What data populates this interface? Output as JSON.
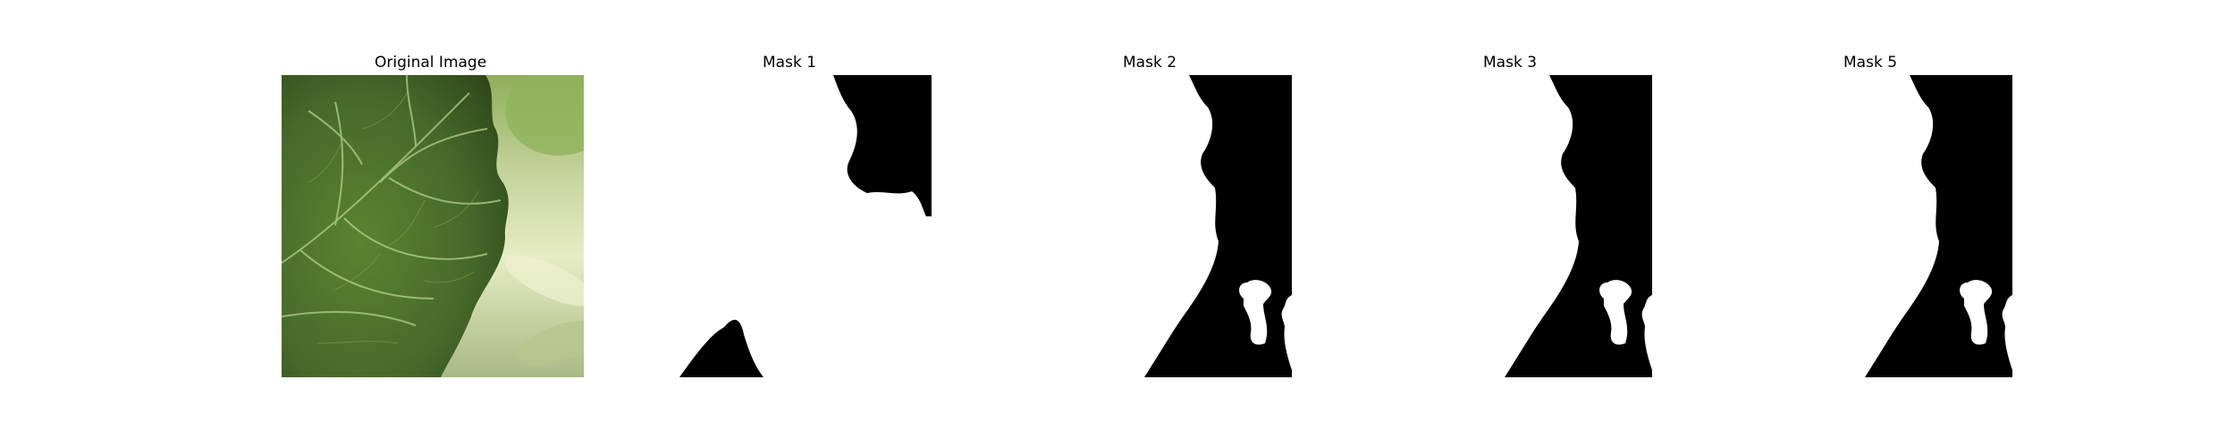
{
  "figure": {
    "panels": [
      {
        "title": "Original Image",
        "kind": "photo",
        "subject": "leaf-closeup"
      },
      {
        "title": "Mask 1",
        "kind": "mask"
      },
      {
        "title": "Mask 2",
        "kind": "mask"
      },
      {
        "title": "Mask 3",
        "kind": "mask"
      },
      {
        "title": "Mask 5",
        "kind": "mask"
      }
    ],
    "colors": {
      "background": "#ffffff",
      "mask_fg": "#ffffff",
      "mask_bg": "#000000",
      "leaf_dark": "#2f4d1b",
      "leaf_mid": "#4f7a2b",
      "leaf_light": "#8fae5a",
      "vein": "#b8cf8a",
      "bokeh_light": "#e7edc4",
      "bokeh_mid": "#b9c98a"
    }
  }
}
